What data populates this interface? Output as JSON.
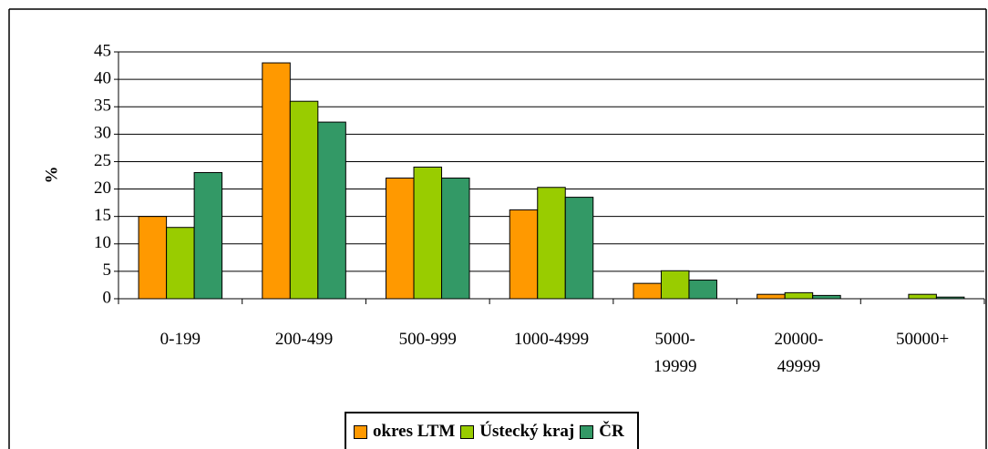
{
  "chart_data": {
    "type": "bar",
    "categories": [
      "0-199",
      "200-499",
      "500-999",
      "1000-4999",
      "5000-19999",
      "20000-49999",
      "50000+"
    ],
    "series": [
      {
        "name": "okres LTM",
        "color": "#ff9900",
        "values": [
          15,
          43,
          22,
          16.2,
          2.8,
          0.8,
          0
        ]
      },
      {
        "name": "Ústecký kraj",
        "color": "#99cc00",
        "values": [
          13,
          36,
          24,
          20.3,
          5.1,
          1.1,
          0.8
        ]
      },
      {
        "name": "ČR",
        "color": "#339966",
        "values": [
          23,
          32.2,
          22,
          18.5,
          3.4,
          0.6,
          0.3
        ]
      }
    ],
    "ylabel": "%",
    "ylim": [
      0,
      45
    ],
    "yticks": [
      0,
      5,
      10,
      15,
      20,
      25,
      30,
      35,
      40,
      45
    ],
    "grid": true
  }
}
